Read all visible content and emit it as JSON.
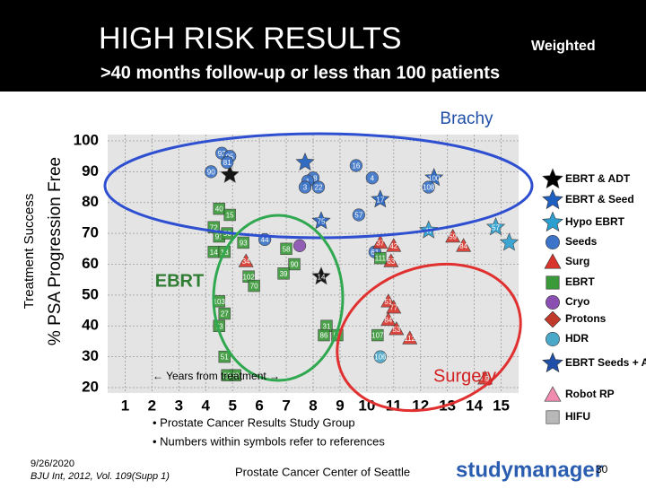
{
  "header": {
    "title": "HIGH RISK RESULTS",
    "badge": "Weighted",
    "subtitle": ">40 months follow-up or less than 100 patients"
  },
  "chart_data": {
    "type": "scatter",
    "y_label": "% PSA Progression Free",
    "y_label_outer": "Treatment Success",
    "x_note": "← Years from treatment →",
    "groups": [
      "Brachy",
      "EBRT",
      "Surgery"
    ],
    "xlim": [
      0.35,
      15.65
    ],
    "xticks": [
      1,
      2,
      3,
      4,
      5,
      6,
      7,
      8,
      9,
      10,
      11,
      12,
      13,
      14,
      15
    ],
    "ylim": [
      20,
      100
    ],
    "yticks": [
      20,
      30,
      40,
      50,
      60,
      70,
      80,
      90,
      100
    ],
    "grid": true,
    "series": [
      {
        "name": "EBRT & ADT",
        "color": "#000000",
        "shape": "star",
        "x": [
          4.9,
          8.3
        ],
        "values": [
          89,
          56
        ],
        "refs": [
          null,
          14
        ]
      },
      {
        "name": "EBRT & Seed",
        "color": "#1f5fbf",
        "shape": "star",
        "x": [
          10.5,
          12.5,
          8.3,
          7.7
        ],
        "values": [
          81,
          88,
          74,
          93
        ],
        "refs": [
          17,
          100,
          75,
          null
        ]
      },
      {
        "name": "Hypo EBRT",
        "color": "#2a9fd0",
        "shape": "star",
        "x": [
          12.3,
          14.8,
          15.3
        ],
        "values": [
          71,
          72,
          67
        ],
        "refs": [
          47,
          57,
          null
        ]
      },
      {
        "name": "Seeds",
        "color": "#3b74c9",
        "shape": "circle",
        "x": [
          4.6,
          4.9,
          4.8,
          4.2,
          8.0,
          7.8,
          8.2,
          7.7,
          9.6,
          10.2,
          12.3,
          9.7,
          10.3,
          6.2
        ],
        "values": [
          96,
          95,
          93,
          90,
          88,
          87,
          85,
          85,
          92,
          88,
          85,
          76,
          64,
          68
        ],
        "refs": [
          92,
          95,
          81,
          90,
          18,
          1,
          22,
          3,
          16,
          4,
          108,
          57,
          61,
          44
        ]
      },
      {
        "name": "Surg",
        "color": "#d9342b",
        "shape": "triangle",
        "x": [
          10.5,
          11.0,
          10.9,
          10.8,
          11.0,
          10.8,
          11.1,
          11.6,
          13.6,
          13.2,
          5.5,
          14.4
        ],
        "values": [
          67,
          66,
          61,
          48,
          46,
          42,
          39,
          36,
          66,
          69,
          61,
          23
        ],
        "refs": [
          37,
          42,
          63,
          51,
          77,
          84,
          53,
          112,
          84,
          59,
          34,
          49
        ]
      },
      {
        "name": "EBRT",
        "color": "#3a9a3a",
        "shape": "square",
        "x": [
          4.5,
          4.9,
          4.3,
          4.5,
          4.8,
          5.4,
          4.3,
          4.7,
          7.0,
          7.3,
          6.9,
          5.6,
          5.8,
          4.5,
          4.7,
          4.5,
          4.7,
          5.1,
          4.8,
          8.5,
          8.4,
          8.9,
          10.5,
          10.4
        ],
        "values": [
          78,
          76,
          72,
          69,
          70,
          67,
          64,
          64,
          65,
          60,
          57,
          56,
          53,
          48,
          44,
          40,
          30,
          24,
          24,
          40,
          37,
          37,
          62,
          37
        ],
        "refs": [
          40,
          15,
          72,
          91,
          56,
          93,
          14,
          13,
          58,
          90,
          39,
          102,
          70,
          103,
          27,
          73,
          51,
          29,
          23,
          31,
          86,
          87,
          111,
          107
        ]
      },
      {
        "name": "Cryo",
        "color": "#8a4fb0",
        "shape": "circle",
        "x": [
          7.5
        ],
        "values": [
          66
        ],
        "refs": [
          null
        ]
      },
      {
        "name": "Protons",
        "color": "#c0392b",
        "shape": "diamond",
        "x": [],
        "values": [],
        "refs": []
      },
      {
        "name": "HDR",
        "color": "#4aa8c8",
        "shape": "circle",
        "x": [
          10.5
        ],
        "values": [
          30
        ],
        "refs": [
          106
        ]
      },
      {
        "name": "EBRT Seeds + ADT",
        "color": "#1f4fa8",
        "shape": "star",
        "x": [],
        "values": [],
        "refs": []
      },
      {
        "name": "Robot RP",
        "color": "#f08cb0",
        "shape": "triangle",
        "x": [],
        "values": [],
        "refs": []
      },
      {
        "name": "HIFU",
        "color": "#b8b8b8",
        "shape": "square",
        "x": [],
        "values": [],
        "refs": []
      }
    ]
  },
  "notes": [
    "• Prostate Cancer Results Study Group",
    "• Numbers within symbols refer to references"
  ],
  "footer": {
    "date": "9/26/2020",
    "citation": "BJU Int, 2012, Vol. 109(Supp 1)",
    "center": "Prostate Cancer Center of Seattle",
    "brand": "studymanager",
    "page": "30"
  }
}
